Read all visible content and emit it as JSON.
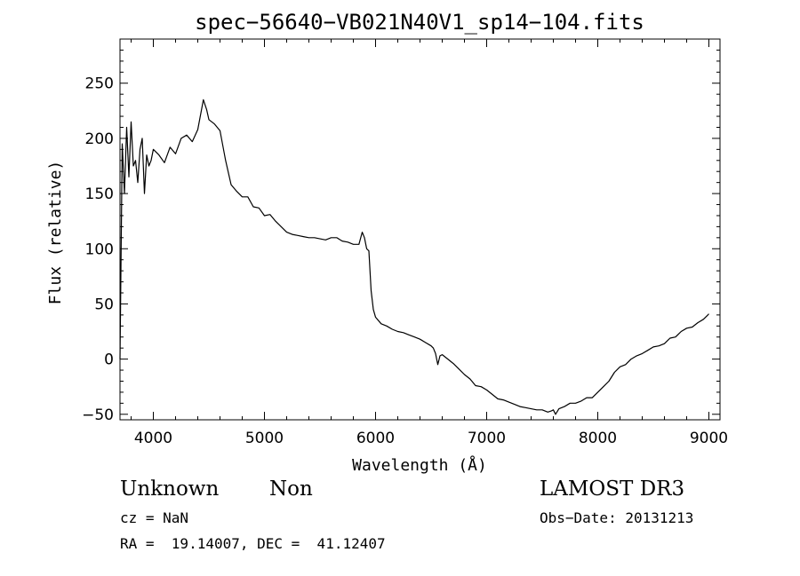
{
  "chart_data": {
    "type": "line",
    "title": "spec−56640−VB021N40V1_sp14−104.fits",
    "xlabel": "Wavelength (Å)",
    "ylabel": "Flux (relative)",
    "xlim": [
      3700,
      9100
    ],
    "ylim": [
      -55,
      290
    ],
    "xticks": [
      4000,
      5000,
      6000,
      7000,
      8000,
      9000
    ],
    "yticks": [
      -50,
      0,
      50,
      100,
      150,
      200,
      250
    ],
    "ytick_labels": [
      "−50",
      "0",
      "50",
      "100",
      "150",
      "200",
      "250"
    ],
    "grid": false,
    "series": [
      {
        "name": "flux",
        "color": "#000000",
        "x": [
          3700,
          3720,
          3740,
          3760,
          3780,
          3800,
          3820,
          3840,
          3860,
          3880,
          3900,
          3920,
          3940,
          3960,
          3980,
          4000,
          4050,
          4100,
          4150,
          4200,
          4250,
          4300,
          4350,
          4400,
          4450,
          4480,
          4500,
          4550,
          4600,
          4650,
          4700,
          4750,
          4800,
          4850,
          4900,
          4950,
          5000,
          5050,
          5100,
          5150,
          5200,
          5250,
          5300,
          5350,
          5400,
          5450,
          5500,
          5550,
          5600,
          5650,
          5700,
          5750,
          5800,
          5850,
          5880,
          5900,
          5920,
          5940,
          5960,
          5980,
          6000,
          6050,
          6100,
          6150,
          6200,
          6250,
          6300,
          6350,
          6400,
          6450,
          6500,
          6520,
          6540,
          6560,
          6580,
          6600,
          6650,
          6700,
          6750,
          6800,
          6850,
          6900,
          6950,
          7000,
          7050,
          7100,
          7150,
          7200,
          7250,
          7300,
          7350,
          7400,
          7450,
          7500,
          7550,
          7580,
          7600,
          7620,
          7650,
          7700,
          7750,
          7800,
          7850,
          7900,
          7950,
          8000,
          8050,
          8100,
          8150,
          8200,
          8250,
          8300,
          8350,
          8400,
          8450,
          8500,
          8550,
          8600,
          8650,
          8700,
          8750,
          8800,
          8850,
          8900,
          8950,
          8990,
          9000
        ],
        "y": [
          0,
          195,
          150,
          210,
          165,
          215,
          175,
          180,
          160,
          190,
          200,
          150,
          185,
          175,
          180,
          190,
          185,
          178,
          192,
          186,
          200,
          203,
          197,
          208,
          235,
          226,
          217,
          213,
          207,
          180,
          158,
          152,
          147,
          147,
          138,
          137,
          130,
          131,
          125,
          120,
          115,
          113,
          112,
          111,
          110,
          110,
          109,
          108,
          110,
          110,
          107,
          106,
          104,
          104,
          115,
          110,
          100,
          98,
          62,
          45,
          38,
          32,
          30,
          27,
          25,
          24,
          22,
          20,
          18,
          15,
          12,
          10,
          5,
          -5,
          3,
          4,
          0,
          -4,
          -9,
          -14,
          -18,
          -24,
          -25,
          -28,
          -32,
          -36,
          -37,
          -39,
          -41,
          -43,
          -44,
          -45,
          -46,
          -46,
          -48,
          -47,
          -46,
          -50,
          -45,
          -43,
          -40,
          -40,
          -38,
          -35,
          -35,
          -30,
          -25,
          -20,
          -12,
          -7,
          -5,
          0,
          3,
          5,
          8,
          11,
          12,
          14,
          19,
          20,
          25,
          28,
          29,
          33,
          36,
          40,
          41
        ]
      }
    ]
  },
  "annotations": {
    "object_class": "Unknown",
    "subclass": "Non",
    "survey": "LAMOST DR3",
    "redshift": "cz = NaN",
    "obs_date": "Obs−Date: 20131213",
    "coords": "RA =  19.14007, DEC =  41.12407"
  }
}
